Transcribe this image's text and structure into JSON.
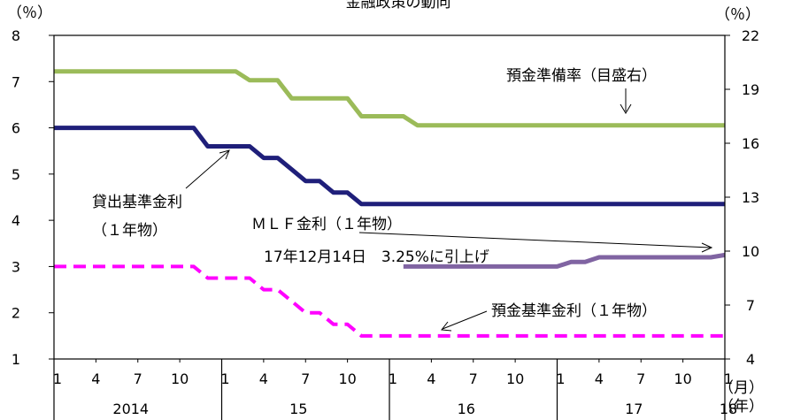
{
  "chart_data": {
    "type": "line",
    "title": "金融政策の動向",
    "left_axis_label": "（％）",
    "right_axis_label": "（％）",
    "left_ylim": [
      1,
      8
    ],
    "left_ticks": [
      "1",
      "2",
      "3",
      "4",
      "5",
      "6",
      "7",
      "8"
    ],
    "right_ylim": [
      4,
      22
    ],
    "right_ticks": [
      "4",
      "7",
      "10",
      "13",
      "16",
      "19",
      "22"
    ],
    "month_ticks": [
      "1",
      "4",
      "7",
      "10",
      "1",
      "4",
      "7",
      "10",
      "1",
      "4",
      "7",
      "10",
      "1",
      "4",
      "7",
      "10",
      "1"
    ],
    "year_labels": [
      "2014",
      "15",
      "16",
      "17",
      "18"
    ],
    "month_unit": "（月）",
    "year_unit": "（年）",
    "grid": false,
    "x_range": [
      "2014-01",
      "2018-01"
    ],
    "series": [
      {
        "name": "預金準備率（目盛右）",
        "axis": "right",
        "color": "#9bbb59",
        "style": "solid",
        "points": [
          [
            "2014-01",
            20
          ],
          [
            "2015-02",
            20
          ],
          [
            "2015-03",
            19.5
          ],
          [
            "2015-05",
            19.5
          ],
          [
            "2015-06",
            18.5
          ],
          [
            "2015-10",
            18.5
          ],
          [
            "2015-11",
            17.5
          ],
          [
            "2016-02",
            17.5
          ],
          [
            "2016-03",
            17
          ],
          [
            "2018-01",
            17
          ]
        ]
      },
      {
        "name": "貸出基準金利",
        "axis": "left",
        "color": "#1f1f7a",
        "style": "solid",
        "points": [
          [
            "2014-01",
            6
          ],
          [
            "2014-11",
            6
          ],
          [
            "2014-12",
            5.6
          ],
          [
            "2015-03",
            5.6
          ],
          [
            "2015-04",
            5.35
          ],
          [
            "2015-05",
            5.35
          ],
          [
            "2015-06",
            5.1
          ],
          [
            "2015-07",
            4.85
          ],
          [
            "2015-08",
            4.85
          ],
          [
            "2015-09",
            4.6
          ],
          [
            "2015-10",
            4.6
          ],
          [
            "2015-11",
            4.35
          ],
          [
            "2018-01",
            4.35
          ]
        ]
      },
      {
        "name": "MLF金利（1年物）",
        "axis": "left",
        "color": "#8064a2",
        "style": "solid",
        "points": [
          [
            "2016-02",
            3
          ],
          [
            "2017-01",
            3
          ],
          [
            "2017-02",
            3.1
          ],
          [
            "2017-03",
            3.1
          ],
          [
            "2017-04",
            3.2
          ],
          [
            "2017-12",
            3.2
          ],
          [
            "2018-01",
            3.25
          ]
        ]
      },
      {
        "name": "預金基準金利（1年物）",
        "axis": "left",
        "color": "#ff00ff",
        "style": "dashed",
        "points": [
          [
            "2014-01",
            3
          ],
          [
            "2014-11",
            3
          ],
          [
            "2014-12",
            2.75
          ],
          [
            "2015-03",
            2.75
          ],
          [
            "2015-04",
            2.5
          ],
          [
            "2015-05",
            2.5
          ],
          [
            "2015-06",
            2.25
          ],
          [
            "2015-07",
            2
          ],
          [
            "2015-08",
            2
          ],
          [
            "2015-09",
            1.75
          ],
          [
            "2015-10",
            1.75
          ],
          [
            "2015-11",
            1.5
          ],
          [
            "2018-01",
            1.5
          ]
        ]
      }
    ],
    "annotations": {
      "reserve": "預金準備率（目盛右）",
      "loan_line1": "貸出基準金利",
      "loan_line2": "（１年物）",
      "mlf_line1": "ＭＬＦ金利（１年物）",
      "mlf_line2": "17年12月14日　3.25%に引上げ",
      "deposit": "預金基準金利（１年物）"
    }
  }
}
